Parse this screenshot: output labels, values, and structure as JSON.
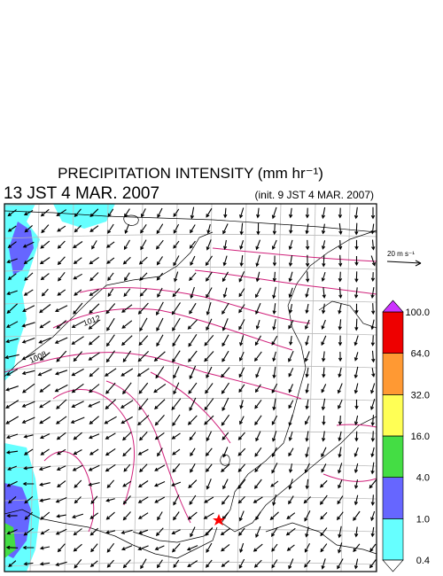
{
  "header": {
    "title": "PRECIPITATION INTENSITY (mm hr⁻¹)",
    "valid_time": "13 JST 4 MAR. 2007",
    "init_time": "(init. 9 JST 4 MAR. 2007)"
  },
  "vector_key": {
    "label": "20 m s⁻¹"
  },
  "isobar_labels": [
    "1008",
    "1012"
  ],
  "colorbar": {
    "levels": [
      0.4,
      {
        "value": 1,
        "label": "1.0"
      },
      {
        "value": 4,
        "label": "4.0"
      },
      {
        "value": 16,
        "label": "16.0"
      },
      {
        "value": 32,
        "label": "32.0"
      },
      {
        "value": 64,
        "label": "64.0"
      },
      {
        "value": 100,
        "label": "100.0"
      }
    ],
    "colors": [
      "#66ffff",
      "#6666ff",
      "#44dd44",
      "#ffff55",
      "#ff9933",
      "#ee0000"
    ],
    "over_color": "#cc33ff",
    "under_color": "#ffffff"
  }
}
